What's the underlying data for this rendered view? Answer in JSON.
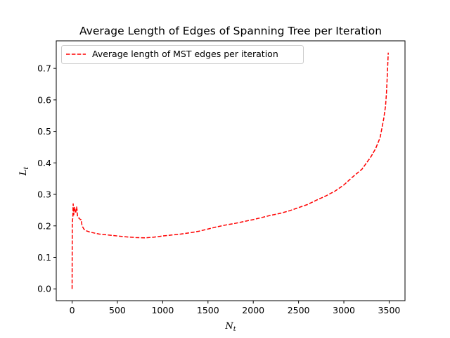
{
  "chart_data": {
    "type": "line",
    "title": "Average Length of Edges of Spanning Tree per Iteration",
    "xlabel": "N",
    "xlabel_sub": "t",
    "ylabel": "L",
    "ylabel_sub": "t",
    "xlim": [
      -175,
      3675
    ],
    "ylim": [
      -0.0375,
      0.7875
    ],
    "xticks": [
      0,
      500,
      1000,
      1500,
      2000,
      2500,
      3000,
      3500
    ],
    "yticks": [
      0.0,
      0.1,
      0.2,
      0.3,
      0.4,
      0.5,
      0.6,
      0.7
    ],
    "ytick_labels": [
      "0.0",
      "0.1",
      "0.2",
      "0.3",
      "0.4",
      "0.5",
      "0.6",
      "0.7"
    ],
    "grid": false,
    "legend_position": "top-left",
    "series": [
      {
        "name": "Average length of MST edges per iteration",
        "color": "#ff0000",
        "line_style": "dashed",
        "x": [
          0,
          2,
          5,
          8,
          10,
          12,
          15,
          18,
          20,
          25,
          30,
          35,
          40,
          45,
          50,
          55,
          60,
          70,
          80,
          90,
          100,
          110,
          120,
          130,
          150,
          200,
          250,
          300,
          400,
          500,
          600,
          700,
          800,
          900,
          1000,
          1100,
          1200,
          1300,
          1400,
          1500,
          1600,
          1700,
          1800,
          1900,
          2000,
          2100,
          2200,
          2300,
          2400,
          2500,
          2600,
          2700,
          2800,
          2900,
          3000,
          3100,
          3200,
          3300,
          3350,
          3400,
          3420,
          3440,
          3460,
          3470,
          3480,
          3490
        ],
        "y": [
          0.0,
          0.2,
          0.22,
          0.225,
          0.255,
          0.27,
          0.25,
          0.235,
          0.245,
          0.26,
          0.25,
          0.245,
          0.24,
          0.255,
          0.26,
          0.25,
          0.23,
          0.225,
          0.225,
          0.22,
          0.22,
          0.2,
          0.195,
          0.19,
          0.185,
          0.18,
          0.177,
          0.174,
          0.171,
          0.168,
          0.165,
          0.163,
          0.162,
          0.164,
          0.168,
          0.171,
          0.174,
          0.178,
          0.183,
          0.19,
          0.197,
          0.203,
          0.208,
          0.214,
          0.22,
          0.227,
          0.234,
          0.24,
          0.248,
          0.258,
          0.268,
          0.282,
          0.295,
          0.31,
          0.33,
          0.356,
          0.38,
          0.42,
          0.445,
          0.48,
          0.51,
          0.54,
          0.58,
          0.62,
          0.68,
          0.75
        ]
      }
    ]
  }
}
